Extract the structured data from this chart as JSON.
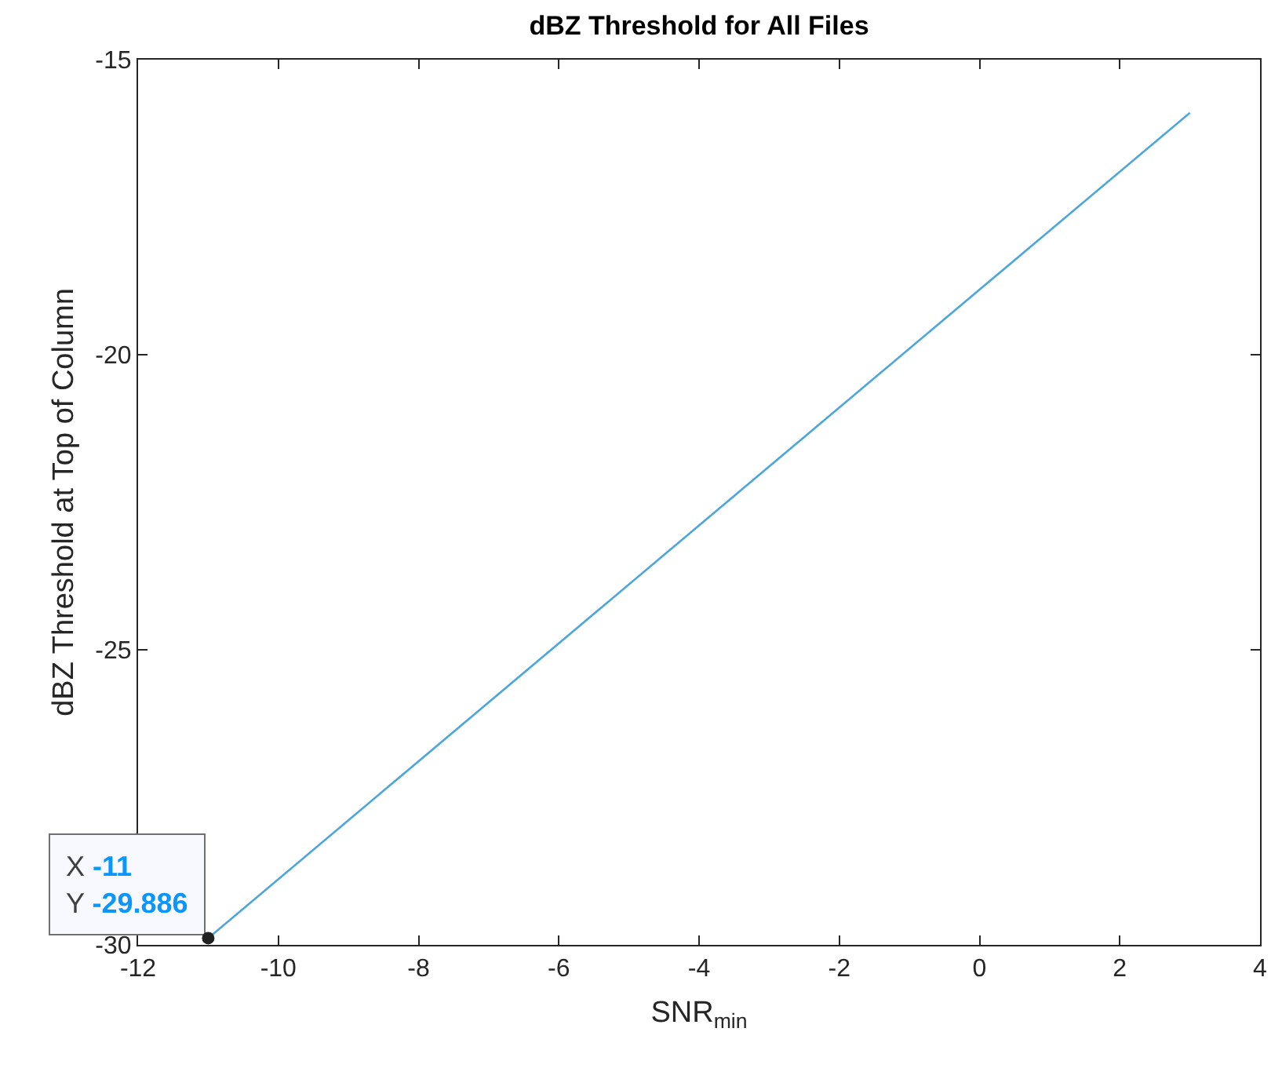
{
  "chart_data": {
    "type": "line",
    "title": "dBZ Threshold for All Files",
    "xlabel": "SNR$_{min}$",
    "ylabel": "dBZ Threshold at Top of Column",
    "x": [
      -11,
      3
    ],
    "series": [
      {
        "color": "#4da6dc",
        "values": [
          -29.886,
          -15.9
        ]
      }
    ],
    "xlim": [
      -12,
      4
    ],
    "xticks": [
      -12,
      -10,
      -8,
      -6,
      -4,
      -2,
      0,
      2,
      4
    ],
    "ylim": [
      -30,
      -15
    ],
    "yticks": [
      -30,
      -25,
      -20,
      -15
    ],
    "line_style": "solid",
    "annotations": [
      {
        "text": "X -11\nY -29.886",
        "x": -11,
        "y": -29.886
      }
    ]
  }
}
